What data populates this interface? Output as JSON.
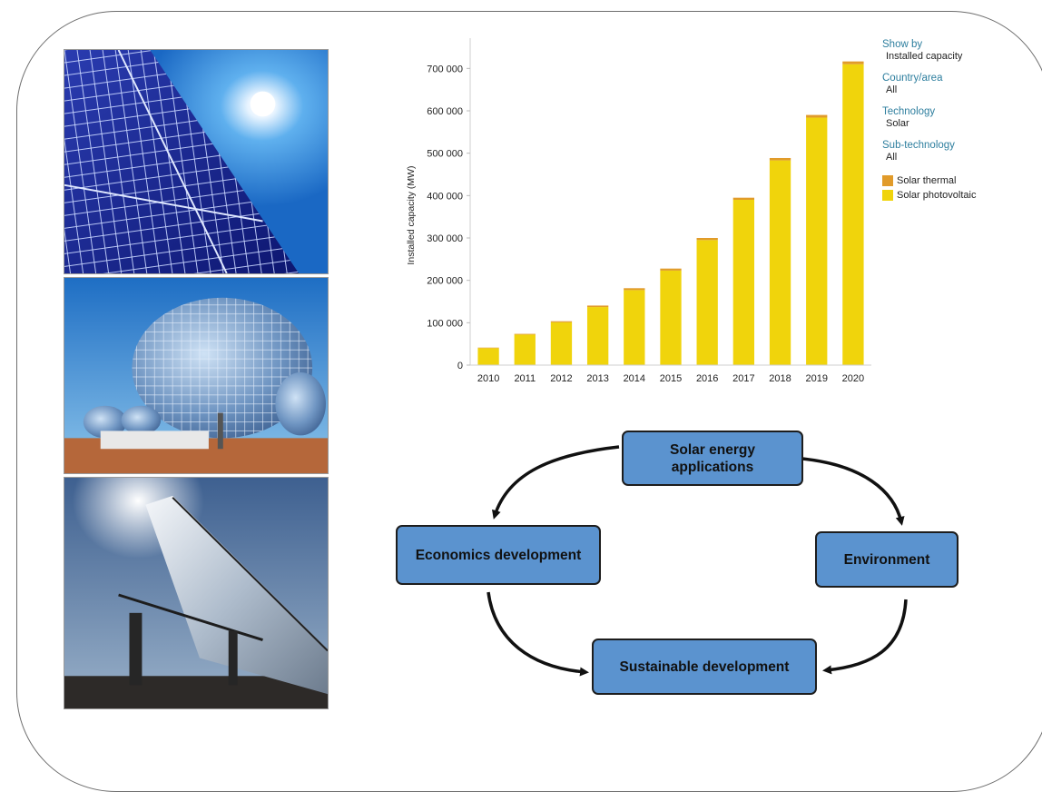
{
  "chart_data": {
    "type": "bar",
    "stacked": true,
    "categories": [
      "2010",
      "2011",
      "2012",
      "2013",
      "2014",
      "2015",
      "2016",
      "2017",
      "2018",
      "2019",
      "2020"
    ],
    "series": [
      {
        "name": "Solar photovoltaic",
        "color": "#f0d40c",
        "values": [
          40000,
          72000,
          101000,
          137000,
          177000,
          223000,
          295000,
          390000,
          483000,
          584000,
          710000
        ]
      },
      {
        "name": "Solar thermal",
        "color": "#e19b2a",
        "values": [
          1300,
          1700,
          2500,
          3500,
          4500,
          4800,
          5000,
          5000,
          5600,
          6200,
          6500
        ]
      }
    ],
    "ylabel": "Installed capacity (MW)",
    "xlabel": "",
    "ylim": [
      0,
      750000
    ],
    "yticks": [
      0,
      100000,
      200000,
      300000,
      400000,
      500000,
      600000,
      700000
    ],
    "ytick_labels": [
      "0",
      "100 000",
      "200 000",
      "300 000",
      "400 000",
      "500 000",
      "600 000",
      "700 000"
    ],
    "grid": false,
    "legend_placement": "right"
  },
  "legend_panel": {
    "show_by_label": "Show by",
    "show_by_value": "Installed capacity",
    "country_label": "Country/area",
    "country_value": "All",
    "technology_label": "Technology",
    "technology_value": "Solar",
    "subtech_label": "Sub-technology",
    "subtech_value": "All",
    "items": [
      "Solar thermal",
      "Solar photovoltaic"
    ],
    "colors": [
      "#e19b2a",
      "#f0d40c"
    ]
  },
  "flowchart": {
    "top": "Solar energy applications",
    "top_line1": "Solar energy",
    "top_line2": "applications",
    "left": "Economics development",
    "right": "Environment",
    "bottom": "Sustainable development"
  },
  "photos": [
    "solar-panel-photo",
    "solar-dish-photo",
    "solar-trough-photo"
  ]
}
